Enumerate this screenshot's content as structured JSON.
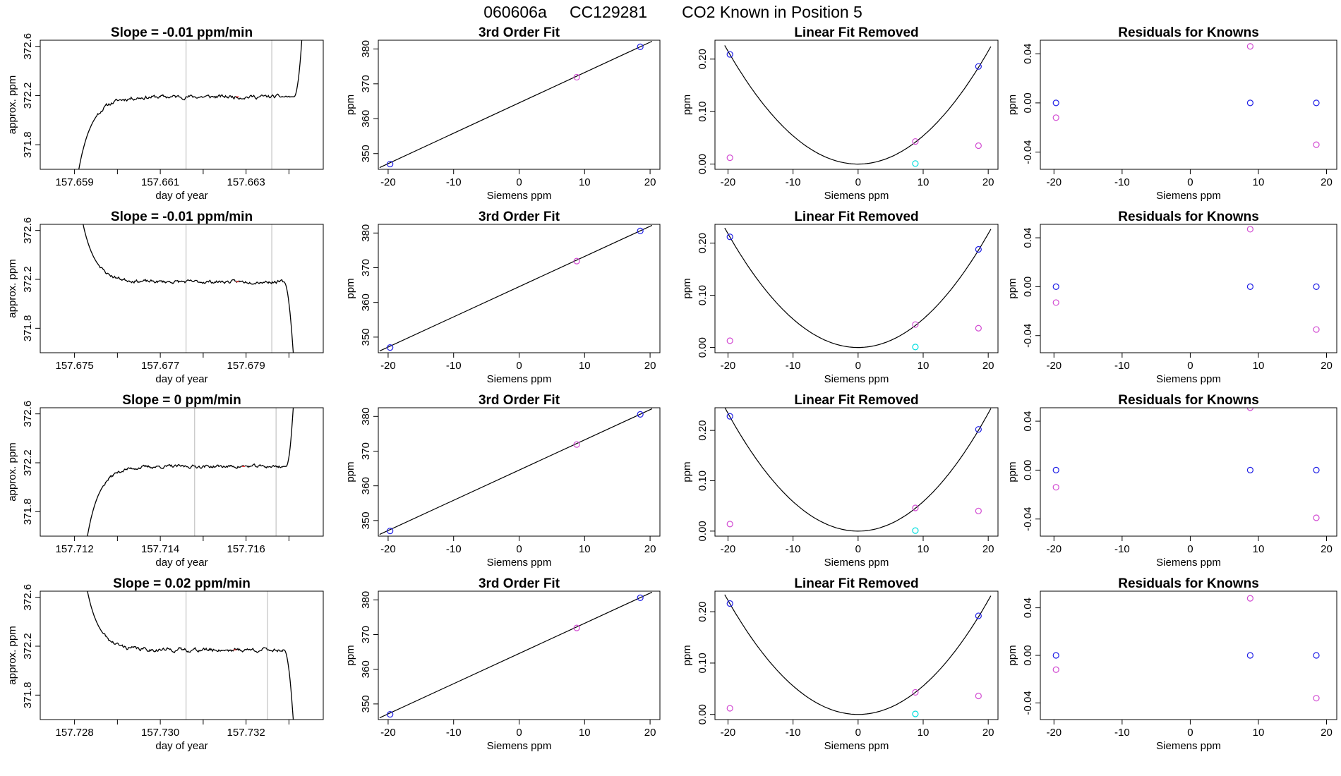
{
  "figure": {
    "title_parts": [
      "060606a",
      "CC129281",
      "CO2 Known in Position  5"
    ]
  },
  "colors": {
    "line": "#000000",
    "box": "#000000",
    "gray_marker": "#c8c8c8",
    "blue": "#1f1fe6",
    "magenta": "#d24bd2",
    "cyan": "#00dede",
    "red": "#ff3030"
  },
  "chart_data": [
    {
      "type": "line",
      "title": "Slope =  -0.01  ppm/min",
      "xlabel": "day of year",
      "ylabel": "approx. ppm",
      "xlim": [
        157.6582,
        157.6648
      ],
      "ylim": [
        371.6,
        372.65
      ],
      "xticks": [
        157.659,
        157.661,
        157.663
      ],
      "xticklabels": [
        "157.659",
        "157.661",
        "157.663"
      ],
      "xminorticks": [
        157.66,
        157.662,
        157.664
      ],
      "yticks": [
        371.8,
        372.2,
        372.6
      ],
      "yticklabels": [
        "371.8",
        "372.2",
        "372.6"
      ],
      "vlines": [
        157.6616,
        157.6636
      ],
      "shape": "rise",
      "t0": 157.6591,
      "t1": 157.6643,
      "y_start": 371.6,
      "y_plateau": 372.19,
      "y_end": 372.65,
      "noise": 0.012,
      "seed": 11
    },
    {
      "type": "line",
      "title": "Slope =  -0.01  ppm/min",
      "xlabel": "day of year",
      "ylabel": "approx. ppm",
      "xlim": [
        157.6742,
        157.6808
      ],
      "ylim": [
        371.6,
        372.65
      ],
      "xticks": [
        157.675,
        157.677,
        157.679
      ],
      "xticklabels": [
        "157.675",
        "157.677",
        "157.679"
      ],
      "xminorticks": [
        157.676,
        157.678,
        157.68
      ],
      "yticks": [
        371.8,
        372.2,
        372.6
      ],
      "yticklabels": [
        "371.8",
        "372.2",
        "372.6"
      ],
      "vlines": [
        157.6776,
        157.6796
      ],
      "shape": "fall",
      "t0": 157.6752,
      "t1": 157.6801,
      "y_start": 372.65,
      "y_plateau": 372.18,
      "y_end": 371.6,
      "noise": 0.01,
      "seed": 23
    },
    {
      "type": "line",
      "title": "Slope =  0  ppm/min",
      "xlabel": "day of year",
      "ylabel": "approx. ppm",
      "xlim": [
        157.7112,
        157.7178
      ],
      "ylim": [
        371.6,
        372.65
      ],
      "xticks": [
        157.712,
        157.714,
        157.716
      ],
      "xticklabels": [
        "157.712",
        "157.714",
        "157.716"
      ],
      "xminorticks": [
        157.713,
        157.715,
        157.717
      ],
      "yticks": [
        371.8,
        372.2,
        372.6
      ],
      "yticklabels": [
        "371.8",
        "372.2",
        "372.6"
      ],
      "vlines": [
        157.7148,
        157.7167
      ],
      "shape": "rise",
      "t0": 157.7123,
      "t1": 157.7171,
      "y_start": 371.6,
      "y_plateau": 372.17,
      "y_end": 372.65,
      "noise": 0.01,
      "seed": 37
    },
    {
      "type": "line",
      "title": "Slope =  0.02  ppm/min",
      "xlabel": "day of year",
      "ylabel": "approx. ppm",
      "xlim": [
        157.7272,
        157.7338
      ],
      "ylim": [
        371.6,
        372.65
      ],
      "xticks": [
        157.728,
        157.73,
        157.732
      ],
      "xticklabels": [
        "157.728",
        "157.730",
        "157.732"
      ],
      "xminorticks": [
        157.729,
        157.731,
        157.733
      ],
      "yticks": [
        371.8,
        372.2,
        372.6
      ],
      "yticklabels": [
        "371.8",
        "372.2",
        "372.6"
      ],
      "vlines": [
        157.7306,
        157.7325
      ],
      "shape": "fall",
      "t0": 157.7283,
      "t1": 157.7331,
      "y_start": 372.65,
      "y_plateau": 372.17,
      "y_end": 371.6,
      "noise": 0.012,
      "seed": 41
    },
    {
      "type": "scatter",
      "title": "3rd Order Fit",
      "xlabel": "Siemens ppm",
      "ylabel": "ppm",
      "xlim": [
        -21.5,
        21.5
      ],
      "ylim": [
        345.5,
        382.5
      ],
      "xticks": [
        -20,
        -10,
        0,
        10,
        20
      ],
      "xticklabels": [
        "-20",
        "-10",
        "0",
        "10",
        "20"
      ],
      "yticks": [
        350,
        360,
        370,
        380
      ],
      "yticklabels": [
        "350",
        "360",
        "370",
        "380"
      ],
      "line": {
        "x": [
          -21.3,
          20.3
        ],
        "y": [
          346.0,
          382.2
        ]
      },
      "points": [
        {
          "x": -19.7,
          "y": 347.0,
          "color": "blue"
        },
        {
          "x": 8.8,
          "y": 371.9,
          "color": "magenta"
        },
        {
          "x": 18.5,
          "y": 380.6,
          "color": "blue"
        }
      ]
    },
    {
      "type": "scatter",
      "title": "3rd Order Fit",
      "xlabel": "Siemens ppm",
      "ylabel": "ppm",
      "xlim": [
        -21.5,
        21.5
      ],
      "ylim": [
        345.5,
        382.5
      ],
      "xticks": [
        -20,
        -10,
        0,
        10,
        20
      ],
      "xticklabels": [
        "-20",
        "-10",
        "0",
        "10",
        "20"
      ],
      "yticks": [
        350,
        360,
        370,
        380
      ],
      "yticklabels": [
        "350",
        "360",
        "370",
        "380"
      ],
      "line": {
        "x": [
          -21.3,
          20.3
        ],
        "y": [
          346.0,
          382.2
        ]
      },
      "points": [
        {
          "x": -19.7,
          "y": 347.0,
          "color": "blue"
        },
        {
          "x": 8.8,
          "y": 371.9,
          "color": "magenta"
        },
        {
          "x": 18.5,
          "y": 380.6,
          "color": "blue"
        }
      ]
    },
    {
      "type": "scatter",
      "title": "3rd Order Fit",
      "xlabel": "Siemens ppm",
      "ylabel": "ppm",
      "xlim": [
        -21.5,
        21.5
      ],
      "ylim": [
        345.5,
        382.5
      ],
      "xticks": [
        -20,
        -10,
        0,
        10,
        20
      ],
      "xticklabels": [
        "-20",
        "-10",
        "0",
        "10",
        "20"
      ],
      "yticks": [
        350,
        360,
        370,
        380
      ],
      "yticklabels": [
        "350",
        "360",
        "370",
        "380"
      ],
      "line": {
        "x": [
          -21.3,
          20.3
        ],
        "y": [
          346.0,
          382.2
        ]
      },
      "points": [
        {
          "x": -19.7,
          "y": 347.0,
          "color": "blue"
        },
        {
          "x": 8.8,
          "y": 371.9,
          "color": "magenta"
        },
        {
          "x": 18.5,
          "y": 380.6,
          "color": "blue"
        }
      ]
    },
    {
      "type": "scatter",
      "title": "3rd Order Fit",
      "xlabel": "Siemens ppm",
      "ylabel": "ppm",
      "xlim": [
        -21.5,
        21.5
      ],
      "ylim": [
        345.5,
        382.5
      ],
      "xticks": [
        -20,
        -10,
        0,
        10,
        20
      ],
      "xticklabels": [
        "-20",
        "-10",
        "0",
        "10",
        "20"
      ],
      "yticks": [
        350,
        360,
        370,
        380
      ],
      "yticklabels": [
        "350",
        "360",
        "370",
        "380"
      ],
      "line": {
        "x": [
          -21.3,
          20.3
        ],
        "y": [
          346.0,
          382.2
        ]
      },
      "points": [
        {
          "x": -19.7,
          "y": 347.0,
          "color": "blue"
        },
        {
          "x": 8.8,
          "y": 371.9,
          "color": "magenta"
        },
        {
          "x": 18.5,
          "y": 380.6,
          "color": "blue"
        }
      ]
    },
    {
      "type": "scatter",
      "title": "Linear Fit Removed",
      "xlabel": "Siemens ppm",
      "ylabel": "ppm",
      "xlim": [
        -22,
        21.5
      ],
      "ylim": [
        -0.01,
        0.236
      ],
      "xticks": [
        -20,
        -10,
        0,
        10,
        20
      ],
      "xticklabels": [
        "-20",
        "-10",
        "0",
        "10",
        "20"
      ],
      "yticks": [
        0.0,
        0.1,
        0.2
      ],
      "yticklabels": [
        "0.00",
        "0.10",
        "0.20"
      ],
      "curve": {
        "x_from": -20.5,
        "x_to": 20.4,
        "coef": 0.000538
      },
      "points": [
        {
          "x": -19.7,
          "y": 0.209,
          "color": "blue"
        },
        {
          "x": 18.5,
          "y": 0.186,
          "color": "blue"
        },
        {
          "x": -19.7,
          "y": 0.012,
          "color": "magenta"
        },
        {
          "x": 8.8,
          "y": 0.043,
          "color": "magenta"
        },
        {
          "x": 18.5,
          "y": 0.035,
          "color": "magenta"
        },
        {
          "x": 8.8,
          "y": 0.001,
          "color": "cyan"
        }
      ]
    },
    {
      "type": "scatter",
      "title": "Linear Fit Removed",
      "xlabel": "Siemens ppm",
      "ylabel": "ppm",
      "xlim": [
        -22,
        21.5
      ],
      "ylim": [
        -0.01,
        0.236
      ],
      "xticks": [
        -20,
        -10,
        0,
        10,
        20
      ],
      "xticklabels": [
        "-20",
        "-10",
        "0",
        "10",
        "20"
      ],
      "yticks": [
        0.0,
        0.1,
        0.2
      ],
      "yticklabels": [
        "0.00",
        "0.10",
        "0.20"
      ],
      "curve": {
        "x_from": -20.5,
        "x_to": 20.4,
        "coef": 0.000545
      },
      "points": [
        {
          "x": -19.7,
          "y": 0.212,
          "color": "blue"
        },
        {
          "x": 18.5,
          "y": 0.188,
          "color": "blue"
        },
        {
          "x": -19.7,
          "y": 0.013,
          "color": "magenta"
        },
        {
          "x": 8.8,
          "y": 0.044,
          "color": "magenta"
        },
        {
          "x": 18.5,
          "y": 0.037,
          "color": "magenta"
        },
        {
          "x": 8.8,
          "y": 0.001,
          "color": "cyan"
        }
      ]
    },
    {
      "type": "scatter",
      "title": "Linear Fit Removed",
      "xlabel": "Siemens ppm",
      "ylabel": "ppm",
      "xlim": [
        -22,
        21.5
      ],
      "ylim": [
        -0.01,
        0.245
      ],
      "xticks": [
        -20,
        -10,
        0,
        10,
        20
      ],
      "xticklabels": [
        "-20",
        "-10",
        "0",
        "10",
        "20"
      ],
      "yticks": [
        0.0,
        0.1,
        0.2
      ],
      "yticklabels": [
        "0.00",
        "0.10",
        "0.20"
      ],
      "curve": {
        "x_from": -20.5,
        "x_to": 20.4,
        "coef": 0.000585
      },
      "points": [
        {
          "x": -19.7,
          "y": 0.228,
          "color": "blue"
        },
        {
          "x": 18.5,
          "y": 0.202,
          "color": "blue"
        },
        {
          "x": -19.7,
          "y": 0.014,
          "color": "magenta"
        },
        {
          "x": 8.8,
          "y": 0.046,
          "color": "magenta"
        },
        {
          "x": 18.5,
          "y": 0.04,
          "color": "magenta"
        },
        {
          "x": 8.8,
          "y": 0.001,
          "color": "cyan"
        }
      ]
    },
    {
      "type": "scatter",
      "title": "Linear Fit Removed",
      "xlabel": "Siemens ppm",
      "ylabel": "ppm",
      "xlim": [
        -22,
        21.5
      ],
      "ylim": [
        -0.01,
        0.24
      ],
      "xticks": [
        -20,
        -10,
        0,
        10,
        20
      ],
      "xticklabels": [
        "-20",
        "-10",
        "0",
        "10",
        "20"
      ],
      "yticks": [
        0.0,
        0.1,
        0.2
      ],
      "yticklabels": [
        "0.00",
        "0.10",
        "0.20"
      ],
      "curve": {
        "x_from": -20.5,
        "x_to": 20.4,
        "coef": 0.000555
      },
      "points": [
        {
          "x": -19.7,
          "y": 0.216,
          "color": "blue"
        },
        {
          "x": 18.5,
          "y": 0.192,
          "color": "blue"
        },
        {
          "x": -19.7,
          "y": 0.012,
          "color": "magenta"
        },
        {
          "x": 8.8,
          "y": 0.043,
          "color": "magenta"
        },
        {
          "x": 18.5,
          "y": 0.036,
          "color": "magenta"
        },
        {
          "x": 8.8,
          "y": 0.001,
          "color": "cyan"
        }
      ]
    },
    {
      "type": "scatter",
      "title": "Residuals for Knowns",
      "xlabel": "Siemens ppm",
      "ylabel": "ppm",
      "xlim": [
        -22,
        21.5
      ],
      "ylim": [
        -0.054,
        0.051
      ],
      "xticks": [
        -20,
        -10,
        0,
        10,
        20
      ],
      "xticklabels": [
        "-20",
        "-10",
        "0",
        "10",
        "20"
      ],
      "yticks": [
        -0.04,
        0.0,
        0.04
      ],
      "yticklabels": [
        "-0.04",
        "0.00",
        "0.04"
      ],
      "points": [
        {
          "x": -19.7,
          "y": 0.0,
          "color": "blue"
        },
        {
          "x": 8.8,
          "y": 0.0,
          "color": "blue"
        },
        {
          "x": 18.5,
          "y": 0.0,
          "color": "blue"
        },
        {
          "x": -19.7,
          "y": -0.012,
          "color": "magenta"
        },
        {
          "x": 8.8,
          "y": 0.046,
          "color": "magenta"
        },
        {
          "x": 18.5,
          "y": -0.034,
          "color": "magenta"
        }
      ]
    },
    {
      "type": "scatter",
      "title": "Residuals for Knowns",
      "xlabel": "Siemens ppm",
      "ylabel": "ppm",
      "xlim": [
        -22,
        21.5
      ],
      "ylim": [
        -0.054,
        0.051
      ],
      "xticks": [
        -20,
        -10,
        0,
        10,
        20
      ],
      "xticklabels": [
        "-20",
        "-10",
        "0",
        "10",
        "20"
      ],
      "yticks": [
        -0.04,
        0.0,
        0.04
      ],
      "yticklabels": [
        "-0.04",
        "0.00",
        "0.04"
      ],
      "points": [
        {
          "x": -19.7,
          "y": 0.0,
          "color": "blue"
        },
        {
          "x": 8.8,
          "y": 0.0,
          "color": "blue"
        },
        {
          "x": 18.5,
          "y": 0.0,
          "color": "blue"
        },
        {
          "x": -19.7,
          "y": -0.013,
          "color": "magenta"
        },
        {
          "x": 8.8,
          "y": 0.047,
          "color": "magenta"
        },
        {
          "x": 18.5,
          "y": -0.035,
          "color": "magenta"
        }
      ]
    },
    {
      "type": "scatter",
      "title": "Residuals for Knowns",
      "xlabel": "Siemens ppm",
      "ylabel": "ppm",
      "xlim": [
        -22,
        21.5
      ],
      "ylim": [
        -0.054,
        0.051
      ],
      "xticks": [
        -20,
        -10,
        0,
        10,
        20
      ],
      "xticklabels": [
        "-20",
        "-10",
        "0",
        "10",
        "20"
      ],
      "yticks": [
        -0.04,
        0.0,
        0.04
      ],
      "yticklabels": [
        "-0.04",
        "0.00",
        "0.04"
      ],
      "points": [
        {
          "x": -19.7,
          "y": 0.0,
          "color": "blue"
        },
        {
          "x": 8.8,
          "y": 0.0,
          "color": "blue"
        },
        {
          "x": 18.5,
          "y": 0.0,
          "color": "blue"
        },
        {
          "x": -19.7,
          "y": -0.014,
          "color": "magenta"
        },
        {
          "x": 8.8,
          "y": 0.051,
          "color": "magenta"
        },
        {
          "x": 18.5,
          "y": -0.039,
          "color": "magenta"
        }
      ]
    },
    {
      "type": "scatter",
      "title": "Residuals for Knowns",
      "xlabel": "Siemens ppm",
      "ylabel": "ppm",
      "xlim": [
        -22,
        21.5
      ],
      "ylim": [
        -0.054,
        0.054
      ],
      "xticks": [
        -20,
        -10,
        0,
        10,
        20
      ],
      "xticklabels": [
        "-20",
        "-10",
        "0",
        "10",
        "20"
      ],
      "yticks": [
        -0.04,
        0.0,
        0.04
      ],
      "yticklabels": [
        "-0.04",
        "0.00",
        "0.04"
      ],
      "points": [
        {
          "x": -19.7,
          "y": 0.0,
          "color": "blue"
        },
        {
          "x": 8.8,
          "y": 0.0,
          "color": "blue"
        },
        {
          "x": 18.5,
          "y": 0.0,
          "color": "blue"
        },
        {
          "x": -19.7,
          "y": -0.012,
          "color": "magenta"
        },
        {
          "x": 8.8,
          "y": 0.048,
          "color": "magenta"
        },
        {
          "x": 18.5,
          "y": -0.036,
          "color": "magenta"
        }
      ]
    }
  ]
}
